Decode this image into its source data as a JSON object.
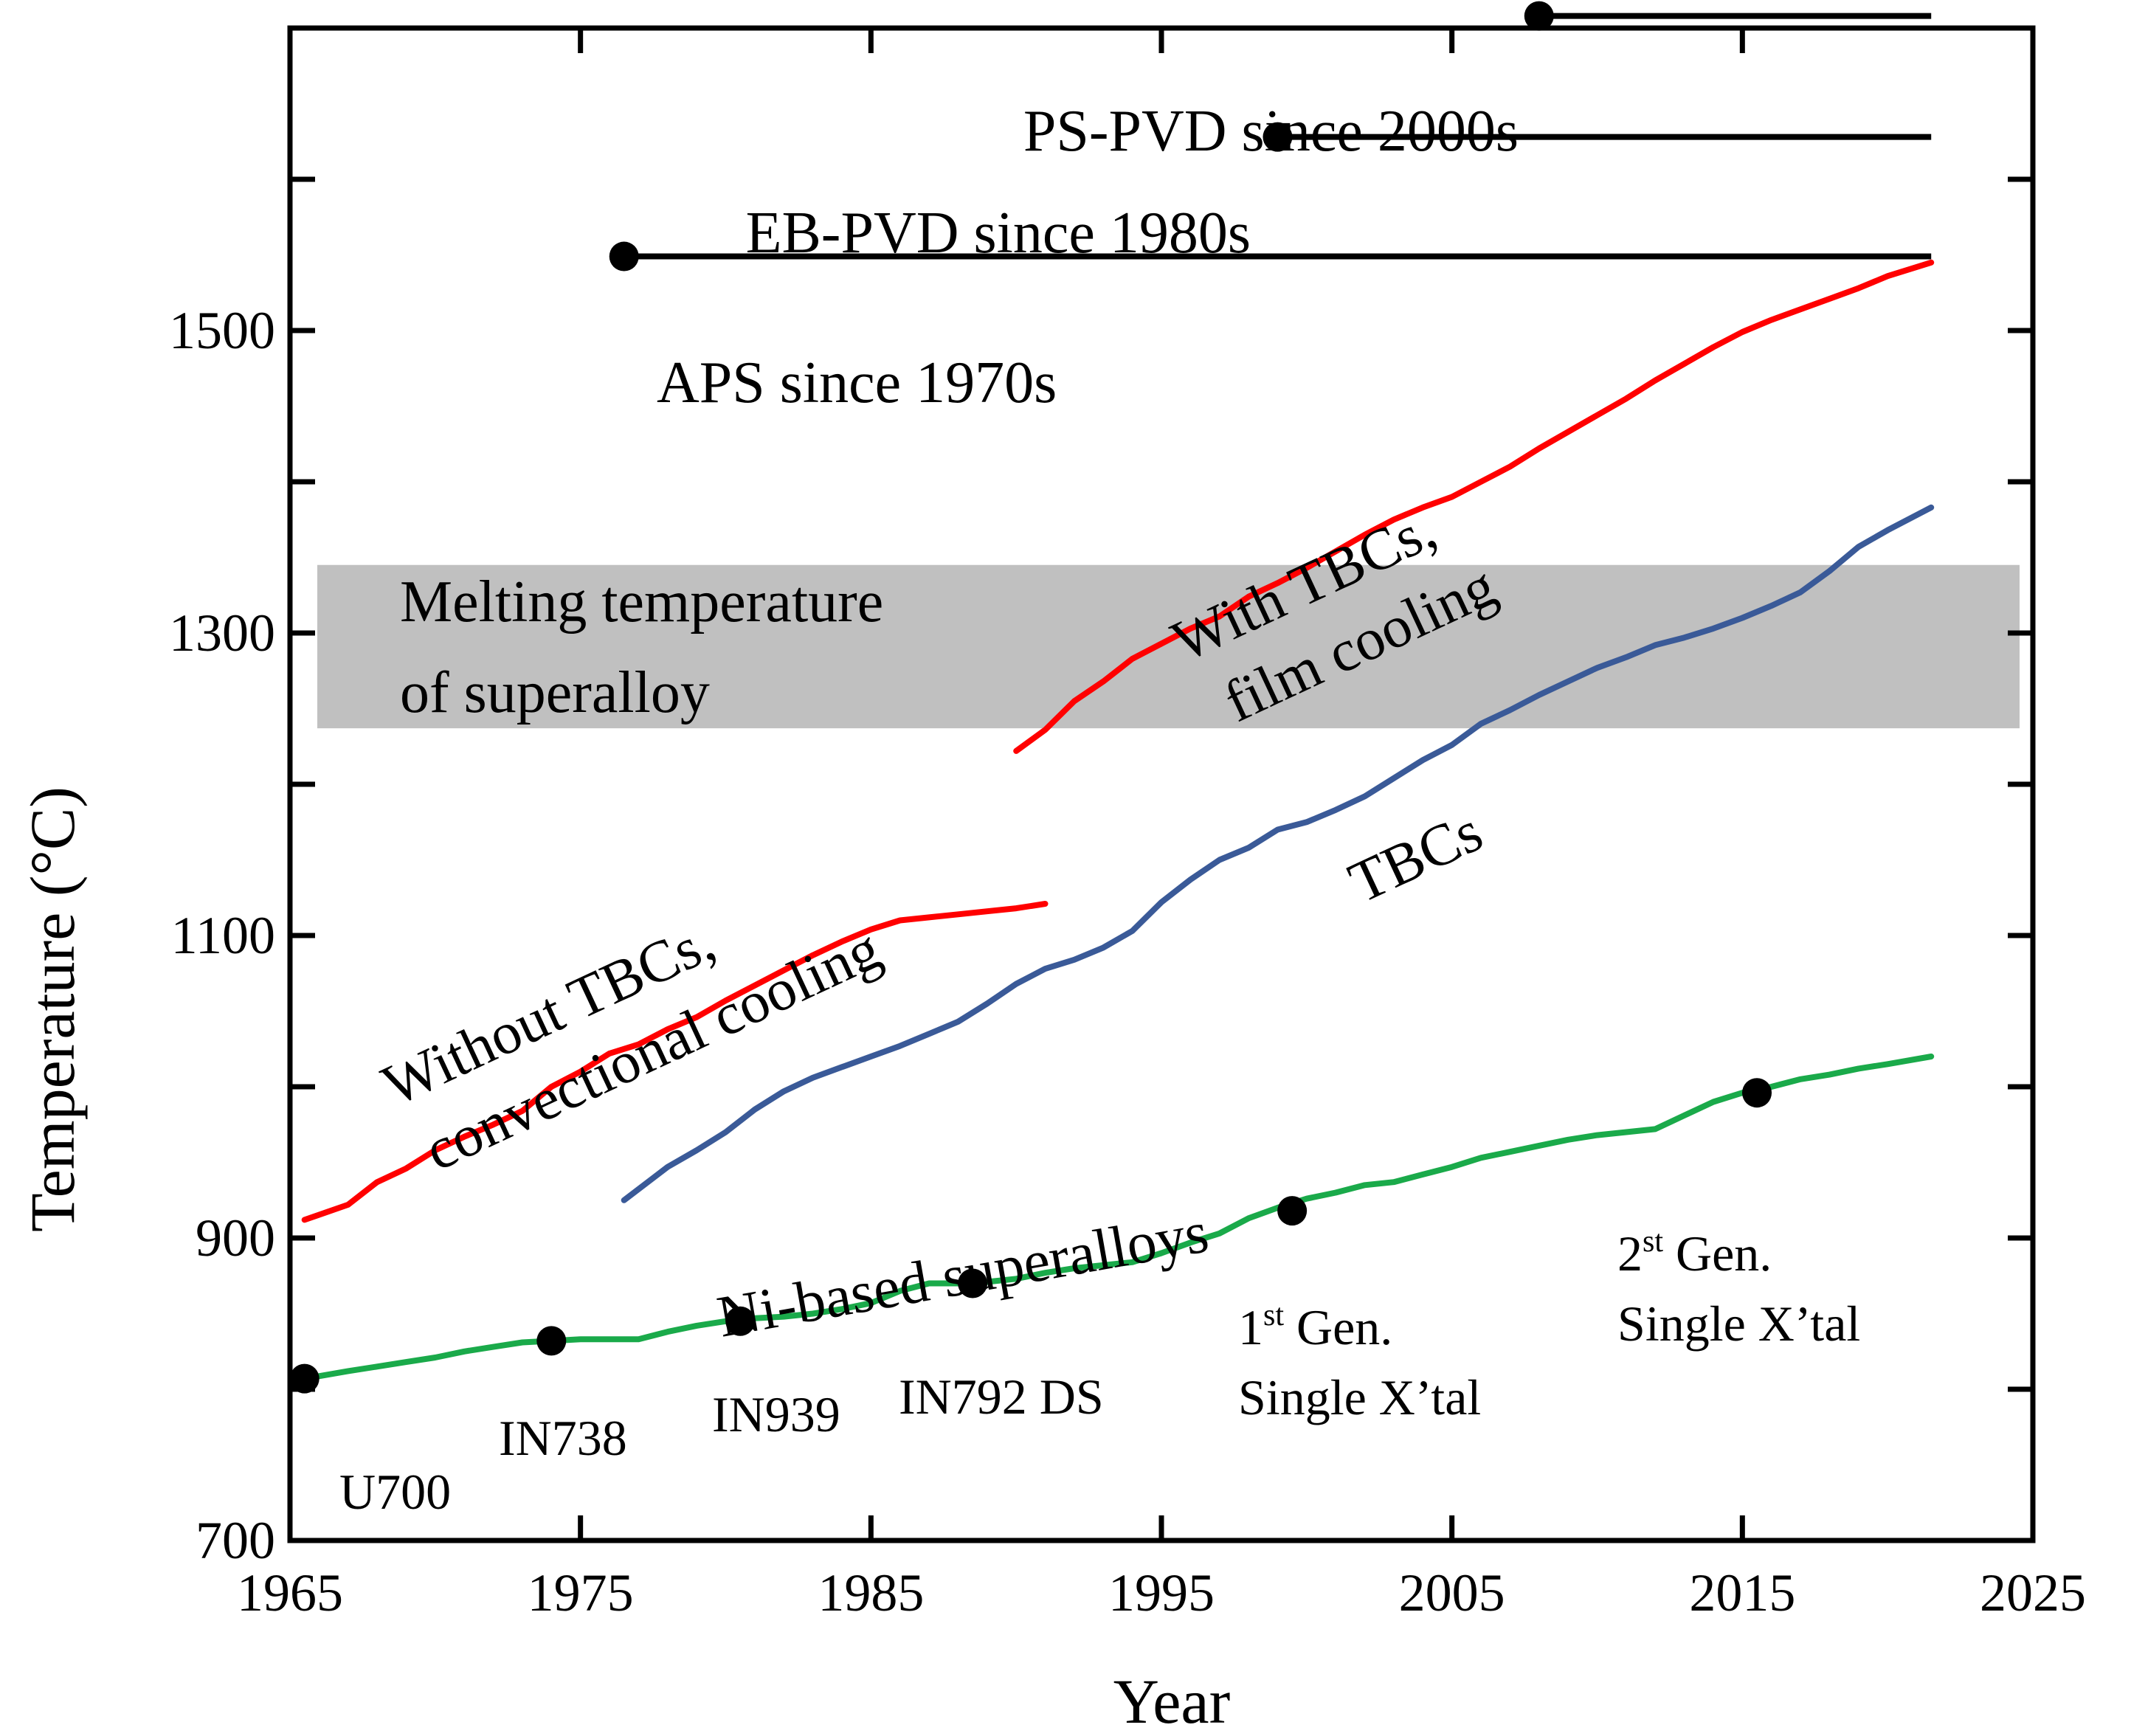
{
  "chart_data": {
    "type": "line",
    "xlabel": "Year",
    "ylabel": "Temperature (°C)",
    "xlim": [
      1965,
      2025
    ],
    "ylim": [
      700,
      1700
    ],
    "x_ticks": [
      1965,
      1975,
      1985,
      1995,
      2005,
      2015,
      2025
    ],
    "y_ticks": [
      700,
      900,
      1100,
      1300,
      1500
    ],
    "grid": false,
    "series": [
      {
        "key": "without",
        "color": "#ff0000",
        "x": [
          1965.5,
          1967,
          1968,
          1969,
          1970,
          1971,
          1972,
          1973,
          1974,
          1975,
          1976,
          1977,
          1978,
          1979,
          1980,
          1981,
          1982,
          1983,
          1984,
          1985,
          1986,
          1987,
          1988,
          1989,
          1990,
          1991
        ],
        "y": [
          912,
          922,
          937,
          946,
          958,
          967,
          975,
          984,
          1000,
          1010,
          1022,
          1028,
          1038,
          1046,
          1057,
          1067,
          1077,
          1087,
          1096,
          1104,
          1110,
          1112,
          1114,
          1116,
          1118,
          1121
        ]
      },
      {
        "key": "film",
        "color": "#ff0000",
        "x": [
          1990,
          1991,
          1992,
          1993,
          1994,
          1995,
          1996,
          1997,
          1998,
          1999,
          2000,
          2001,
          2002,
          2003,
          2004,
          2005,
          2006,
          2007,
          2008,
          2009,
          2010,
          2011,
          2012,
          2013,
          2014,
          2015,
          2016,
          2017,
          2018,
          2019,
          2020,
          2021.5
        ],
        "y": [
          1222,
          1236,
          1255,
          1268,
          1283,
          1293,
          1303,
          1311,
          1324,
          1333,
          1343,
          1354,
          1365,
          1375,
          1383,
          1390,
          1400,
          1410,
          1422,
          1433,
          1444,
          1455,
          1467,
          1478,
          1489,
          1499,
          1507,
          1514,
          1521,
          1528,
          1536,
          1545
        ]
      },
      {
        "key": "tbc",
        "color": "#3a5a98",
        "x": [
          1976.5,
          1978,
          1979,
          1980,
          1981,
          1982,
          1983,
          1984,
          1985,
          1986,
          1987,
          1988,
          1989,
          1990,
          1991,
          1992,
          1993,
          1994,
          1995,
          1996,
          1997,
          1998,
          1999,
          2000,
          2001,
          2002,
          2003,
          2004,
          2005,
          2006,
          2007,
          2008,
          2009,
          2010,
          2011,
          2012,
          2013,
          2014,
          2015,
          2016,
          2017,
          2018,
          2019,
          2020,
          2021.5
        ],
        "y": [
          925,
          947,
          958,
          970,
          985,
          997,
          1006,
          1013,
          1020,
          1027,
          1035,
          1043,
          1055,
          1068,
          1078,
          1084,
          1092,
          1103,
          1122,
          1137,
          1150,
          1158,
          1170,
          1175,
          1183,
          1192,
          1204,
          1216,
          1226,
          1240,
          1249,
          1259,
          1268,
          1277,
          1284,
          1292,
          1297,
          1303,
          1310,
          1318,
          1327,
          1341,
          1357,
          1368,
          1383
        ]
      },
      {
        "key": "ni",
        "color": "#1aaa4a",
        "x": [
          1965.5,
          1967,
          1968,
          1969,
          1970,
          1971,
          1972,
          1973,
          1974,
          1975,
          1976,
          1977,
          1978,
          1979,
          1980,
          1981,
          1982,
          1983,
          1984,
          1985,
          1986,
          1987,
          1988,
          1989,
          1990,
          1991,
          1992,
          1993,
          1994,
          1995,
          1996,
          1997,
          1998,
          1999,
          2000,
          2001,
          2002,
          2003,
          2004,
          2005,
          2006,
          2007,
          2008,
          2009,
          2010,
          2011,
          2012,
          2013,
          2014,
          2015,
          2016,
          2017,
          2018,
          2019,
          2020,
          2021.5
        ],
        "y": [
          807,
          812,
          815,
          818,
          821,
          825,
          828,
          831,
          832,
          833,
          833,
          833,
          838,
          842,
          845,
          847,
          848,
          850,
          853,
          857,
          865,
          870,
          870,
          871,
          873,
          877,
          880,
          882,
          884,
          890,
          897,
          903,
          913,
          920,
          926,
          930,
          935,
          937,
          942,
          947,
          953,
          957,
          961,
          965,
          968,
          970,
          972,
          981,
          990,
          996,
          1000,
          1005,
          1008,
          1012,
          1015,
          1020
        ]
      }
    ],
    "milestones": [
      {
        "label": "U700",
        "x": 1965.5,
        "y": 807
      },
      {
        "label": "IN738",
        "x": 1974,
        "y": 832
      },
      {
        "label": "IN939",
        "x": 1980.5,
        "y": 845
      },
      {
        "label": "IN792 DS",
        "x": 1988.5,
        "y": 870
      },
      {
        "label": "Single X’tal",
        "x": 1999.5,
        "y": 918
      },
      {
        "label": "Single X’tal",
        "x": 2015.5,
        "y": 996
      }
    ],
    "process_lines": [
      {
        "key": "psvd",
        "start": 2008,
        "end": 2021.5,
        "y": 1708
      },
      {
        "key": "ebpvd",
        "start": 1999,
        "end": 2021.5,
        "y": 1628
      },
      {
        "key": "aps",
        "start": 1976.5,
        "end": 2021.5,
        "y": 1549
      }
    ],
    "melting_band": {
      "y_low": 1237,
      "y_high": 1345,
      "color": "#c0c0c0"
    },
    "annotations": {
      "ps_pvd": "PS-PVD since 2000s",
      "eb_pvd": "EB-PVD since 1980s",
      "aps": "APS since 1970s",
      "melting_1": "Melting temperature",
      "melting_2": "of superalloy",
      "with_1": "With TBCs,",
      "with_2": "film cooling",
      "without_1": "Without TBCs,",
      "without_2": "convectional cooling",
      "tbcs": "TBCs",
      "ni_based": "Ni-based superalloys",
      "gen1_num": "1",
      "gen1_sup": "st",
      "gen1_rest": " Gen.",
      "gen1_line2": "Single X’tal",
      "gen2_num": "2",
      "gen2_sup": "st",
      "gen2_rest": " Gen.",
      "gen2_line2": "Single X’tal"
    }
  }
}
